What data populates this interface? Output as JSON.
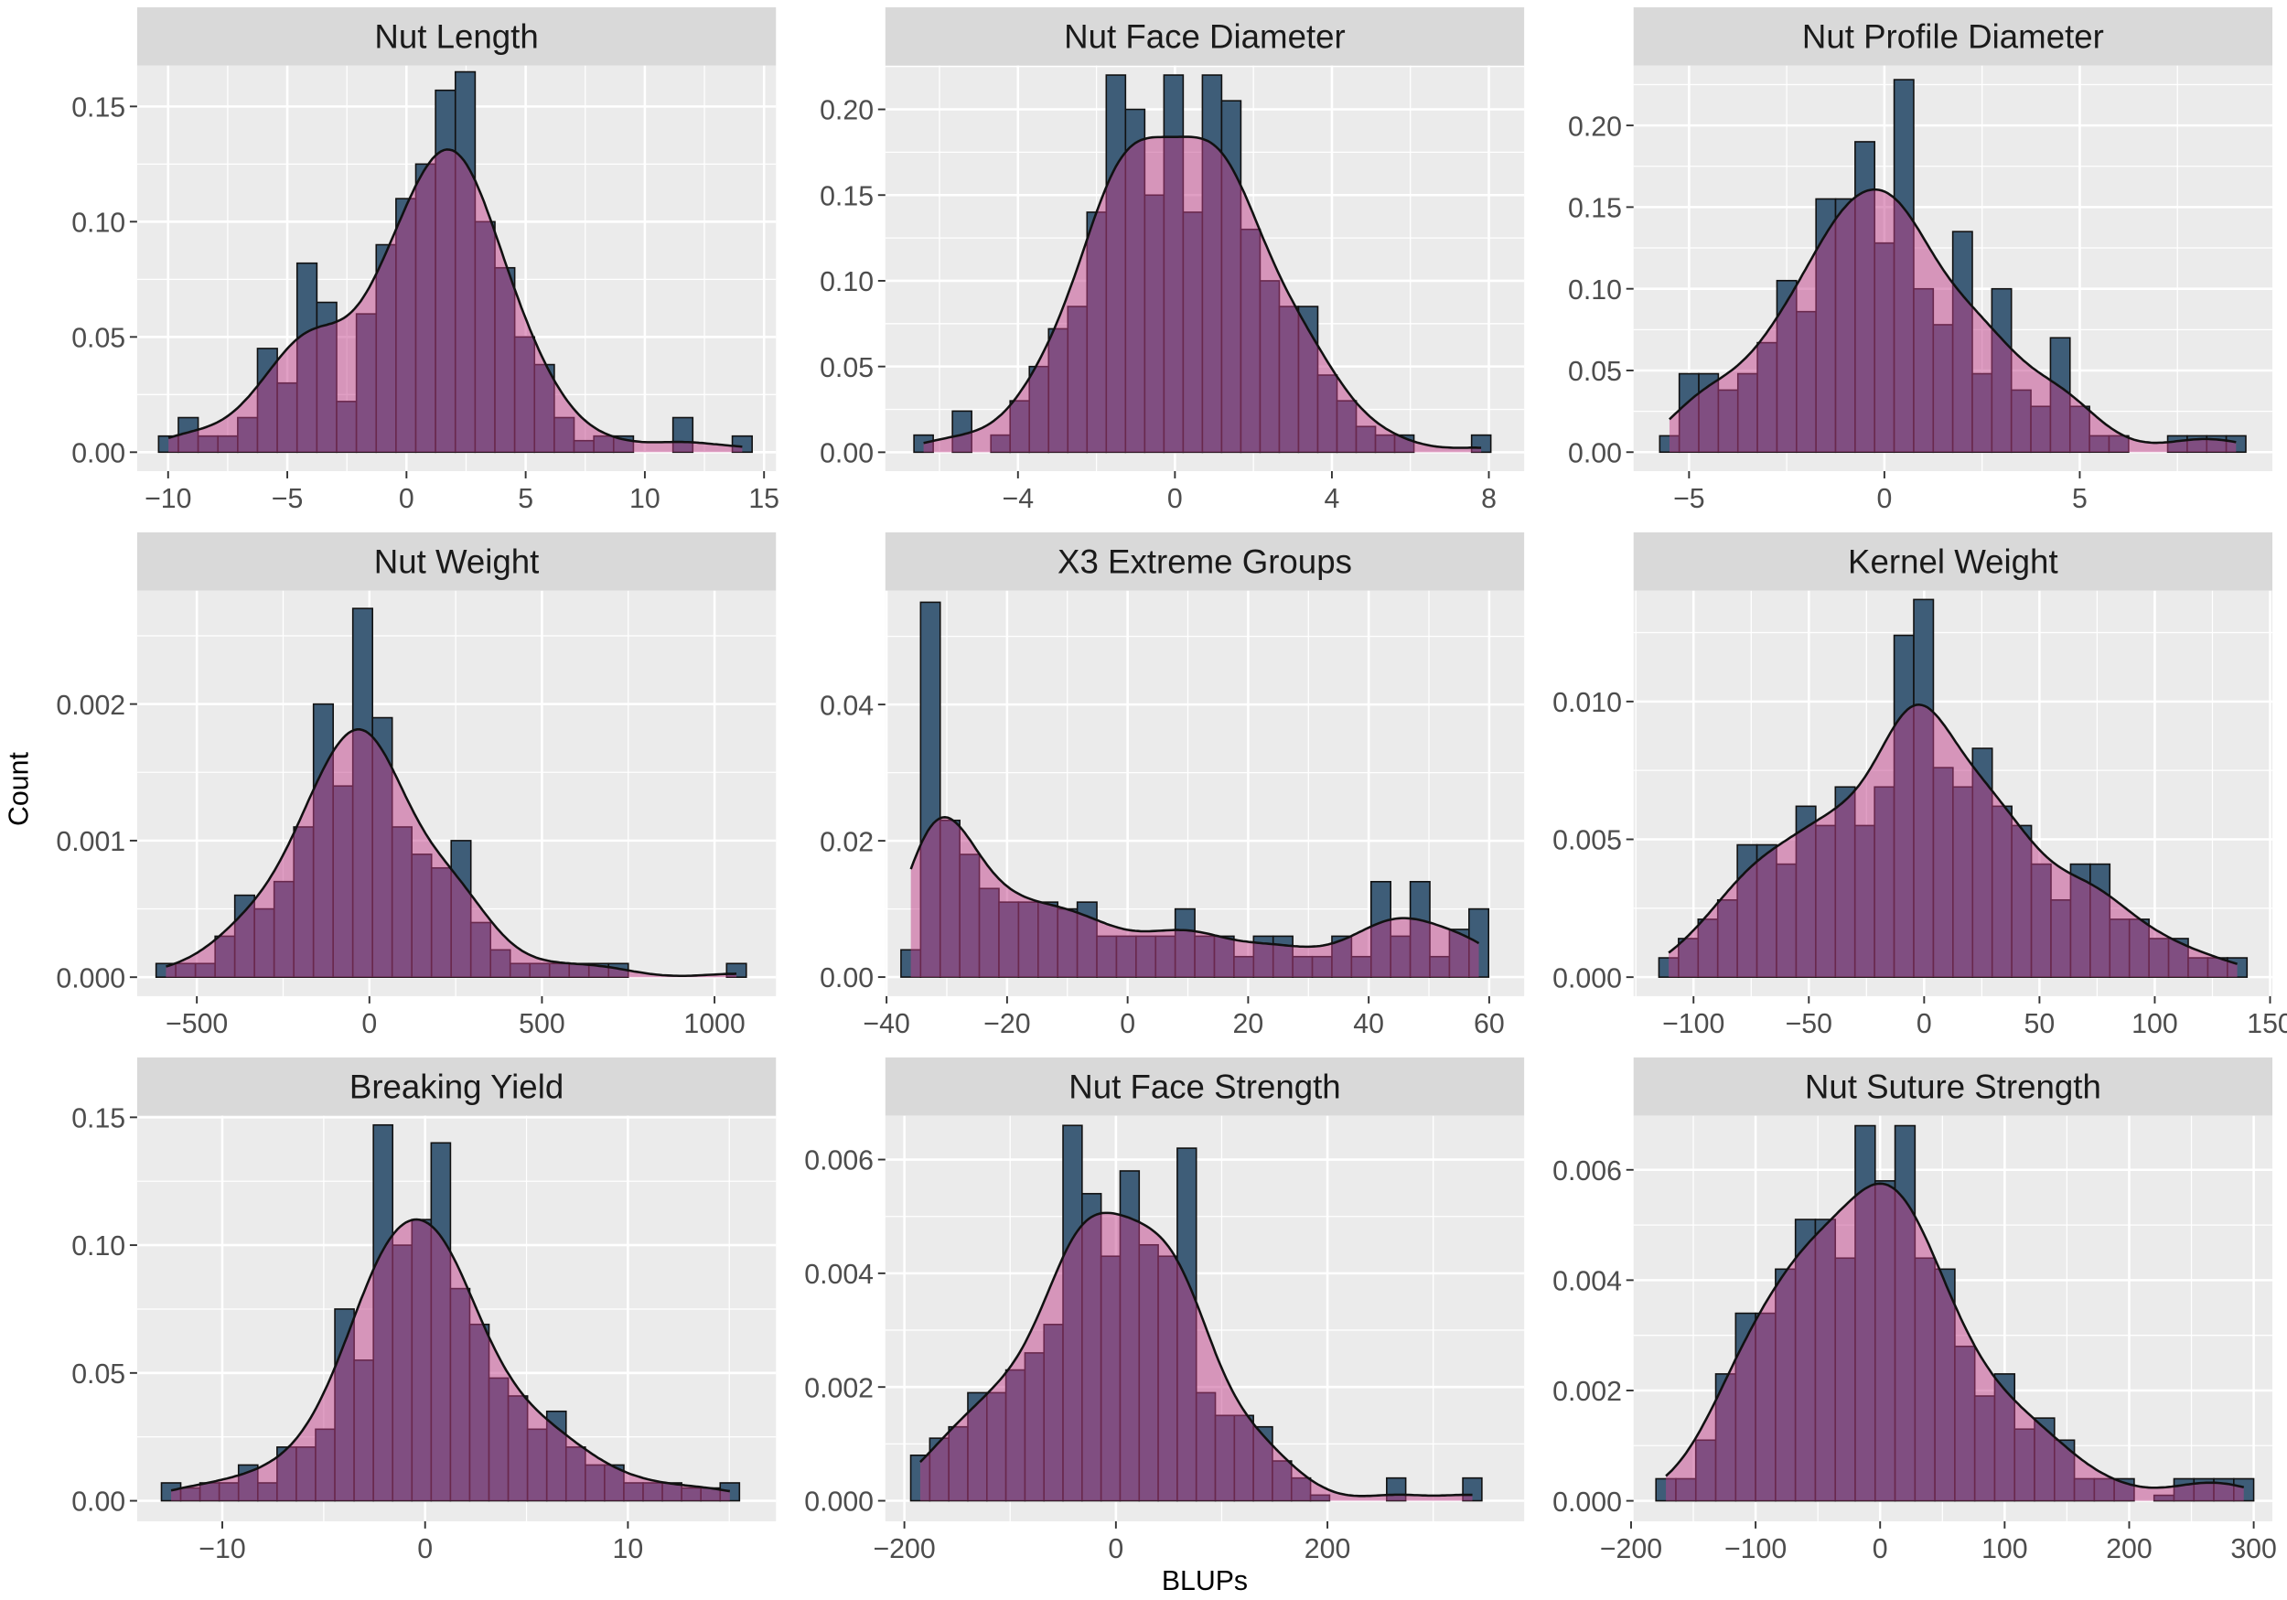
{
  "colors": {
    "panel_bg": "#ebebeb",
    "strip_bg": "#d9d9d9",
    "grid": "#ffffff",
    "bar_fill": "#3e5d78",
    "bar_stroke": "#111111",
    "density_fill": "#c2408a",
    "density_stroke": "#111111"
  },
  "chart_data": {
    "type": "bar",
    "subtype": "faceted histogram with density overlay",
    "xlabel": "BLUPs",
    "ylabel": "Count",
    "facets": [
      {
        "title": "Nut Length",
        "bins": {
          "start": -10.4,
          "width": 0.83
        },
        "values": [
          0.007,
          0.015,
          0.007,
          0.007,
          0.015,
          0.045,
          0.03,
          0.082,
          0.065,
          0.022,
          0.06,
          0.09,
          0.11,
          0.125,
          0.157,
          0.165,
          0.1,
          0.08,
          0.05,
          0.038,
          0.015,
          0.005,
          0.007,
          0.007,
          0,
          0,
          0.015,
          0,
          0,
          0.007
        ],
        "xlim": [
          -11.3,
          15.5
        ],
        "ylim": [
          -0.0082,
          0.1677
        ],
        "xticks": [
          {
            "v": -10,
            "label": "−10"
          },
          {
            "v": -5,
            "label": "−5"
          },
          {
            "v": 0,
            "label": "0"
          },
          {
            "v": 5,
            "label": "5"
          },
          {
            "v": 10,
            "label": "10"
          },
          {
            "v": 15,
            "label": "15"
          }
        ],
        "yticks": [
          {
            "v": 0,
            "label": "0.00"
          },
          {
            "v": 0.05,
            "label": "0.05"
          },
          {
            "v": 0.1,
            "label": "0.10"
          },
          {
            "v": 0.15,
            "label": "0.15"
          }
        ]
      },
      {
        "title": "Nut Face Diameter",
        "bins": {
          "start": -6.65,
          "width": 0.49
        },
        "values": [
          0.01,
          0,
          0.024,
          0,
          0.01,
          0.03,
          0.05,
          0.072,
          0.085,
          0.14,
          0.22,
          0.2,
          0.15,
          0.22,
          0.14,
          0.22,
          0.205,
          0.13,
          0.1,
          0.085,
          0.085,
          0.045,
          0.03,
          0.015,
          0.01,
          0.01,
          0,
          0,
          0,
          0.01
        ],
        "xlim": [
          -7.38,
          8.9
        ],
        "ylim": [
          -0.011,
          0.2255
        ],
        "xticks": [
          {
            "v": -4,
            "label": "−4"
          },
          {
            "v": 0,
            "label": "0"
          },
          {
            "v": 4,
            "label": "4"
          },
          {
            "v": 8,
            "label": "8"
          }
        ],
        "yticks": [
          {
            "v": 0,
            "label": "0.00"
          },
          {
            "v": 0.05,
            "label": "0.05"
          },
          {
            "v": 0.1,
            "label": "0.10"
          },
          {
            "v": 0.15,
            "label": "0.15"
          },
          {
            "v": 0.2,
            "label": "0.20"
          }
        ]
      },
      {
        "title": "Nut Profile Diameter",
        "bins": {
          "start": -5.75,
          "width": 0.5
        },
        "values": [
          0.01,
          0.048,
          0.048,
          0.038,
          0.048,
          0.067,
          0.105,
          0.086,
          0.155,
          0.155,
          0.19,
          0.128,
          0.228,
          0.1,
          0.078,
          0.135,
          0.048,
          0.1,
          0.038,
          0.028,
          0.07,
          0.028,
          0.01,
          0.01,
          0,
          0,
          0.01,
          0.01,
          0.01,
          0.01
        ],
        "xlim": [
          -6.42,
          9.93
        ],
        "ylim": [
          -0.0116,
          0.2366
        ],
        "xticks": [
          {
            "v": -5,
            "label": "−5"
          },
          {
            "v": 0,
            "label": "0"
          },
          {
            "v": 5,
            "label": "5"
          }
        ],
        "yticks": [
          {
            "v": 0,
            "label": "0.00"
          },
          {
            "v": 0.05,
            "label": "0.05"
          },
          {
            "v": 0.1,
            "label": "0.10"
          },
          {
            "v": 0.15,
            "label": "0.15"
          },
          {
            "v": 0.2,
            "label": "0.20"
          }
        ]
      },
      {
        "title": "Nut Weight",
        "bins": {
          "start": -618,
          "width": 57
        },
        "values": [
          0.0001,
          0.0001,
          0.0001,
          0.0003,
          0.0006,
          0.0005,
          0.0007,
          0.0011,
          0.002,
          0.0014,
          0.0027,
          0.0019,
          0.0011,
          0.0009,
          0.0008,
          0.001,
          0.0004,
          0.0002,
          0.0001,
          0.0001,
          0.0001,
          0.0001,
          0.0001,
          0.0001,
          0,
          0,
          0,
          0,
          0,
          0.0001
        ],
        "xlim": [
          -673,
          1178
        ],
        "ylim": [
          -0.000139,
          0.00283
        ],
        "xticks": [
          {
            "v": -500,
            "label": "−500"
          },
          {
            "v": 0,
            "label": "0"
          },
          {
            "v": 500,
            "label": "500"
          },
          {
            "v": 1000,
            "label": "1000"
          }
        ],
        "yticks": [
          {
            "v": 0,
            "label": "0.000"
          },
          {
            "v": 0.001,
            "label": "0.001"
          },
          {
            "v": 0.002,
            "label": "0.002"
          }
        ]
      },
      {
        "title": "X3 Extreme Groups",
        "bins": {
          "start": -37.6,
          "width": 3.25
        },
        "values": [
          0.004,
          0.055,
          0.023,
          0.018,
          0.013,
          0.011,
          0.011,
          0.011,
          0.01,
          0.011,
          0.006,
          0.006,
          0.006,
          0.006,
          0.01,
          0.006,
          0.006,
          0.003,
          0.006,
          0.006,
          0.003,
          0.003,
          0.006,
          0.003,
          0.014,
          0.006,
          0.014,
          0.003,
          0.007,
          0.01
        ],
        "xlim": [
          -40.2,
          65.8
        ],
        "ylim": [
          -0.0028,
          0.0567
        ],
        "xticks": [
          {
            "v": -40,
            "label": "−40"
          },
          {
            "v": -20,
            "label": "−20"
          },
          {
            "v": 0,
            "label": "0"
          },
          {
            "v": 20,
            "label": "20"
          },
          {
            "v": 40,
            "label": "40"
          },
          {
            "v": 60,
            "label": "60"
          }
        ],
        "yticks": [
          {
            "v": 0,
            "label": "0.00"
          },
          {
            "v": 0.02,
            "label": "0.02"
          },
          {
            "v": 0.04,
            "label": "0.04"
          }
        ]
      },
      {
        "title": "Kernel Weight",
        "bins": {
          "start": -115,
          "width": 8.5
        },
        "values": [
          0.0007,
          0.0014,
          0.0021,
          0.0028,
          0.0048,
          0.0048,
          0.0041,
          0.0062,
          0.0055,
          0.0069,
          0.0055,
          0.0069,
          0.0124,
          0.0137,
          0.0076,
          0.0069,
          0.0083,
          0.0062,
          0.0055,
          0.0041,
          0.0028,
          0.0041,
          0.0041,
          0.0021,
          0.0021,
          0.0014,
          0.0014,
          0.0007,
          0.0007,
          0.0007
        ],
        "xlim": [
          -126,
          151
        ],
        "ylim": [
          -0.00069,
          0.01402
        ],
        "xticks": [
          {
            "v": -100,
            "label": "−100"
          },
          {
            "v": -50,
            "label": "−50"
          },
          {
            "v": 0,
            "label": "0"
          },
          {
            "v": 50,
            "label": "50"
          },
          {
            "v": 100,
            "label": "100"
          },
          {
            "v": 150,
            "label": "150"
          }
        ],
        "yticks": [
          {
            "v": 0,
            "label": "0.000"
          },
          {
            "v": 0.005,
            "label": "0.005"
          },
          {
            "v": 0.01,
            "label": "0.010"
          }
        ]
      },
      {
        "title": "Breaking Yield",
        "bins": {
          "start": -13,
          "width": 0.95
        },
        "values": [
          0.007,
          0.005,
          0.007,
          0.007,
          0.014,
          0.007,
          0.021,
          0.021,
          0.028,
          0.075,
          0.055,
          0.147,
          0.1,
          0.11,
          0.14,
          0.083,
          0.069,
          0.048,
          0.041,
          0.028,
          0.035,
          0.021,
          0.014,
          0.014,
          0.007,
          0.007,
          0.007,
          0.005,
          0.005,
          0.007
        ],
        "xlim": [
          -14.2,
          17.3
        ],
        "ylim": [
          -0.008,
          0.1506
        ],
        "xticks": [
          {
            "v": -10,
            "label": "−10"
          },
          {
            "v": 0,
            "label": "0"
          },
          {
            "v": 10,
            "label": "10"
          }
        ],
        "yticks": [
          {
            "v": 0,
            "label": "0.00"
          },
          {
            "v": 0.05,
            "label": "0.05"
          },
          {
            "v": 0.1,
            "label": "0.10"
          },
          {
            "v": 0.15,
            "label": "0.15"
          }
        ]
      },
      {
        "title": "Nut Face Strength",
        "bins": {
          "start": -194,
          "width": 18
        },
        "values": [
          0.0008,
          0.0011,
          0.0013,
          0.0019,
          0.0019,
          0.0023,
          0.0026,
          0.0031,
          0.0066,
          0.0054,
          0.0043,
          0.0058,
          0.0045,
          0.0043,
          0.0062,
          0.0019,
          0.0015,
          0.0015,
          0.0013,
          0.0007,
          0.0004,
          0.0001,
          0,
          0,
          0,
          0.0004,
          0,
          0,
          0,
          0.0004
        ],
        "xlim": [
          -218,
          386
        ],
        "ylim": [
          -0.00036,
          0.00677
        ],
        "xticks": [
          {
            "v": -200,
            "label": "−200"
          },
          {
            "v": 0,
            "label": "0"
          },
          {
            "v": 200,
            "label": "200"
          }
        ],
        "yticks": [
          {
            "v": 0,
            "label": "0.000"
          },
          {
            "v": 0.002,
            "label": "0.002"
          },
          {
            "v": 0.004,
            "label": "0.004"
          },
          {
            "v": 0.006,
            "label": "0.006"
          }
        ]
      },
      {
        "title": "Nut Suture Strength",
        "bins": {
          "start": -180,
          "width": 16
        },
        "values": [
          0.0004,
          0.0004,
          0.0011,
          0.0023,
          0.0034,
          0.0034,
          0.0042,
          0.0051,
          0.0051,
          0.0044,
          0.0068,
          0.0058,
          0.0068,
          0.0044,
          0.0042,
          0.0028,
          0.0019,
          0.0023,
          0.0013,
          0.0015,
          0.0011,
          0.0004,
          0.0004,
          0.0004,
          0,
          0.0001,
          0.0004,
          0.0004,
          0.0004,
          0.0004
        ],
        "xlim": [
          -198,
          315
        ],
        "ylim": [
          -0.00037,
          0.00698
        ],
        "xticks": [
          {
            "v": -200,
            "label": "−200"
          },
          {
            "v": -100,
            "label": "−100"
          },
          {
            "v": 0,
            "label": "0"
          },
          {
            "v": 100,
            "label": "100"
          },
          {
            "v": 200,
            "label": "200"
          },
          {
            "v": 300,
            "label": "300"
          }
        ],
        "yticks": [
          {
            "v": 0,
            "label": "0.000"
          },
          {
            "v": 0.002,
            "label": "0.002"
          },
          {
            "v": 0.004,
            "label": "0.004"
          },
          {
            "v": 0.006,
            "label": "0.006"
          }
        ]
      }
    ]
  }
}
